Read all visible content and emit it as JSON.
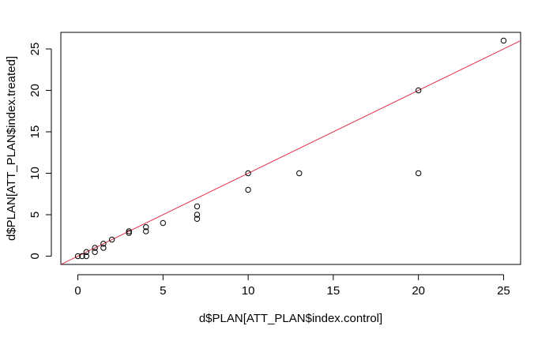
{
  "chart_data": {
    "type": "scatter",
    "title": "",
    "xlabel": "d$PLAN[ATT_PLAN$index.control]",
    "ylabel": "d$PLAN[ATT_PLAN$index.treated]",
    "xlim": [
      -1,
      26
    ],
    "ylim": [
      -1,
      27
    ],
    "x_ticks": [
      0,
      5,
      10,
      15,
      20,
      25
    ],
    "y_ticks": [
      0,
      5,
      10,
      15,
      20,
      25
    ],
    "grid": false,
    "legend": "none",
    "points": [
      {
        "x": 0,
        "y": 0
      },
      {
        "x": 0.25,
        "y": 0
      },
      {
        "x": 0.5,
        "y": 0
      },
      {
        "x": 0.5,
        "y": 0.5
      },
      {
        "x": 1,
        "y": 0.5
      },
      {
        "x": 1,
        "y": 1
      },
      {
        "x": 1.5,
        "y": 1
      },
      {
        "x": 1.5,
        "y": 1.5
      },
      {
        "x": 2,
        "y": 2
      },
      {
        "x": 3,
        "y": 2.8
      },
      {
        "x": 3,
        "y": 3
      },
      {
        "x": 4,
        "y": 3
      },
      {
        "x": 4,
        "y": 3.5
      },
      {
        "x": 5,
        "y": 4
      },
      {
        "x": 7,
        "y": 4.5
      },
      {
        "x": 7,
        "y": 5
      },
      {
        "x": 7,
        "y": 6
      },
      {
        "x": 10,
        "y": 8
      },
      {
        "x": 10,
        "y": 10
      },
      {
        "x": 13,
        "y": 10
      },
      {
        "x": 20,
        "y": 10
      },
      {
        "x": 20,
        "y": 20
      },
      {
        "x": 25,
        "y": 26
      }
    ],
    "reference_line": {
      "intercept": 0,
      "slope": 1,
      "color": "#e0304a"
    },
    "point_color": "#000000",
    "axis_color": "#000000"
  }
}
